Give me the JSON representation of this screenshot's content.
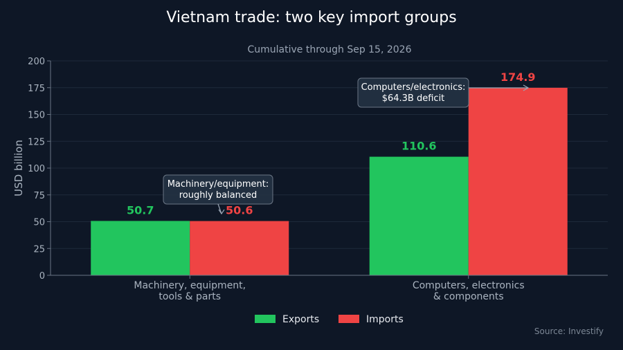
{
  "title": "Vietnam trade: two key import groups",
  "subtitle": "Cumulative through Sep 15, 2026",
  "source": "Source: Investify",
  "colors": {
    "exports": "#22c55e",
    "imports": "#ef4444",
    "background": "#0e1726"
  },
  "chart_data": {
    "type": "bar",
    "categories": [
      [
        "Machinery, equipment,",
        "tools & parts"
      ],
      [
        "Computers, electronics",
        "& components"
      ]
    ],
    "series": [
      {
        "name": "Exports",
        "values": [
          50.7,
          110.6
        ]
      },
      {
        "name": "Imports",
        "values": [
          50.6,
          174.9
        ]
      }
    ],
    "ylabel": "USD billion",
    "ylim": [
      0,
      200
    ],
    "yticks": [
      0,
      25,
      50,
      75,
      100,
      125,
      150,
      175,
      200
    ],
    "grid": true,
    "legend": "bottom-center",
    "annotations": [
      {
        "lines": [
          "Machinery/equipment:",
          "roughly balanced"
        ],
        "category": 0,
        "series": 1
      },
      {
        "lines": [
          "Computers/electronics:",
          "$64.3B deficit"
        ],
        "category": 1,
        "series": 1
      }
    ]
  }
}
